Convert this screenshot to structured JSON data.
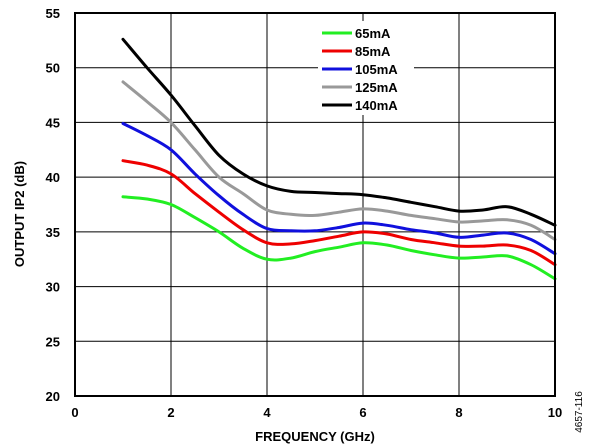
{
  "chart_data": {
    "type": "line",
    "title": "",
    "xlabel": "FREQUENCY (GHz)",
    "ylabel": "OUTPUT IP2 (dB)",
    "xlim": [
      0,
      10
    ],
    "ylim": [
      20,
      55
    ],
    "xticks": [
      "0",
      "2",
      "4",
      "6",
      "8",
      "10"
    ],
    "yticks": [
      "20",
      "25",
      "30",
      "35",
      "40",
      "45",
      "50",
      "55"
    ],
    "grid": true,
    "legend_position": "top-right",
    "x": [
      1,
      1.5,
      2,
      2.5,
      3,
      3.5,
      4,
      4.5,
      5,
      5.5,
      6,
      6.5,
      7,
      7.5,
      8,
      8.5,
      9,
      9.5,
      10
    ],
    "series": [
      {
        "name": "65mA",
        "color": "#22ee22",
        "values": [
          38.2,
          38.0,
          37.5,
          36.3,
          35.0,
          33.5,
          32.5,
          32.6,
          33.2,
          33.6,
          34.0,
          33.8,
          33.3,
          32.9,
          32.6,
          32.7,
          32.8,
          32.0,
          30.7
        ]
      },
      {
        "name": "85mA",
        "color": "#ee0000",
        "values": [
          41.5,
          41.1,
          40.3,
          38.5,
          36.8,
          35.2,
          34.0,
          33.9,
          34.2,
          34.6,
          35.0,
          34.8,
          34.3,
          34.0,
          33.7,
          33.7,
          33.8,
          33.3,
          32.0
        ]
      },
      {
        "name": "105mA",
        "color": "#1010dd",
        "values": [
          44.9,
          43.8,
          42.5,
          40.3,
          38.3,
          36.6,
          35.3,
          35.1,
          35.1,
          35.4,
          35.8,
          35.6,
          35.2,
          34.9,
          34.5,
          34.7,
          34.9,
          34.3,
          33.0
        ]
      },
      {
        "name": "125mA",
        "color": "#999999",
        "values": [
          48.7,
          46.9,
          45.0,
          42.5,
          40.0,
          38.5,
          37.0,
          36.6,
          36.5,
          36.8,
          37.1,
          36.9,
          36.5,
          36.2,
          35.9,
          36.0,
          36.1,
          35.6,
          34.3
        ]
      },
      {
        "name": "140mA",
        "color": "#000000",
        "values": [
          52.6,
          50.0,
          47.5,
          44.7,
          42.0,
          40.3,
          39.2,
          38.7,
          38.6,
          38.5,
          38.4,
          38.1,
          37.7,
          37.3,
          36.9,
          37.0,
          37.3,
          36.6,
          35.6
        ]
      }
    ],
    "figure_id": "4657-116"
  }
}
